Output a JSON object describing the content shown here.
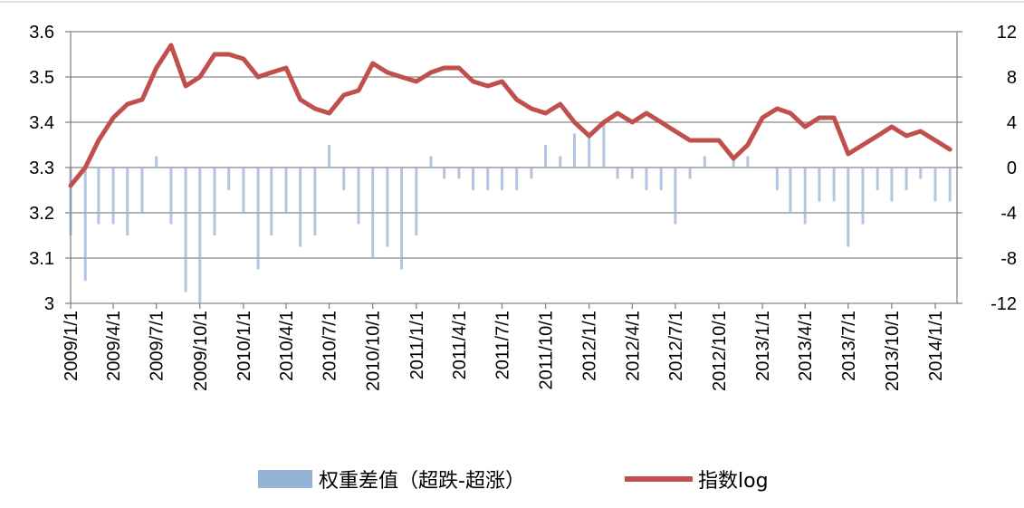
{
  "chart_data": {
    "type": "bar+line",
    "title": "",
    "xlabel": "",
    "ylabel_left": "",
    "ylabel_right": "",
    "ylim_left": [
      3.0,
      3.6
    ],
    "ylim_right": [
      -12,
      12
    ],
    "left_ticks": [
      "3",
      "3.1",
      "3.2",
      "3.3",
      "3.4",
      "3.5",
      "3.6"
    ],
    "right_ticks": [
      "-12",
      "-8",
      "-4",
      "0",
      "4",
      "8",
      "12"
    ],
    "x_tick_labels": [
      "2009/1/1",
      "2009/4/1",
      "2009/7/1",
      "2009/10/1",
      "2010/1/1",
      "2010/4/1",
      "2010/7/1",
      "2010/10/1",
      "2011/1/1",
      "2011/4/1",
      "2011/7/1",
      "2011/10/1",
      "2012/1/1",
      "2012/4/1",
      "2012/7/1",
      "2012/10/1",
      "2013/1/1",
      "2013/4/1",
      "2013/7/1",
      "2013/10/1",
      "2014/1/1"
    ],
    "grid": true,
    "legend_position": "bottom",
    "legend": [
      {
        "label": "权重差值（超跌-超涨）",
        "color": "#95b3d7",
        "kind": "bar"
      },
      {
        "label": "指数log",
        "color": "#c0504d",
        "kind": "line"
      }
    ],
    "series": [
      {
        "name": "指数log",
        "axis": "left",
        "color": "#c0504d",
        "x": [
          "2009/1/1",
          "2009/2/1",
          "2009/3/1",
          "2009/4/1",
          "2009/5/1",
          "2009/6/1",
          "2009/7/1",
          "2009/8/1",
          "2009/9/1",
          "2009/10/1",
          "2009/11/1",
          "2009/12/1",
          "2010/1/1",
          "2010/2/1",
          "2010/3/1",
          "2010/4/1",
          "2010/5/1",
          "2010/6/1",
          "2010/7/1",
          "2010/8/1",
          "2010/9/1",
          "2010/10/1",
          "2010/11/1",
          "2010/12/1",
          "2011/1/1",
          "2011/2/1",
          "2011/3/1",
          "2011/4/1",
          "2011/5/1",
          "2011/6/1",
          "2011/7/1",
          "2011/8/1",
          "2011/9/1",
          "2011/10/1",
          "2011/11/1",
          "2011/12/1",
          "2012/1/1",
          "2012/2/1",
          "2012/3/1",
          "2012/4/1",
          "2012/5/1",
          "2012/6/1",
          "2012/7/1",
          "2012/8/1",
          "2012/9/1",
          "2012/10/1",
          "2012/11/1",
          "2012/12/1",
          "2013/1/1",
          "2013/2/1",
          "2013/3/1",
          "2013/4/1",
          "2013/5/1",
          "2013/6/1",
          "2013/7/1",
          "2013/8/1",
          "2013/9/1",
          "2013/10/1",
          "2013/11/1",
          "2013/12/1",
          "2014/1/1",
          "2014/2/1"
        ],
        "values": [
          3.26,
          3.3,
          3.36,
          3.41,
          3.44,
          3.45,
          3.52,
          3.57,
          3.48,
          3.5,
          3.55,
          3.55,
          3.54,
          3.5,
          3.51,
          3.52,
          3.45,
          3.43,
          3.42,
          3.46,
          3.47,
          3.53,
          3.51,
          3.5,
          3.49,
          3.51,
          3.52,
          3.52,
          3.49,
          3.48,
          3.49,
          3.45,
          3.43,
          3.42,
          3.44,
          3.4,
          3.37,
          3.4,
          3.42,
          3.4,
          3.42,
          3.4,
          3.38,
          3.36,
          3.36,
          3.36,
          3.32,
          3.35,
          3.41,
          3.43,
          3.42,
          3.39,
          3.41,
          3.41,
          3.33,
          3.35,
          3.37,
          3.39,
          3.37,
          3.38,
          3.36,
          3.34
        ]
      },
      {
        "name": "权重差值（超跌-超涨）",
        "axis": "right",
        "color": "#95b3d7",
        "x": [
          "2009/1/1",
          "2009/2/1",
          "2009/3/1",
          "2009/4/1",
          "2009/5/1",
          "2009/6/1",
          "2009/7/1",
          "2009/8/1",
          "2009/9/1",
          "2009/10/1",
          "2009/11/1",
          "2009/12/1",
          "2010/1/1",
          "2010/2/1",
          "2010/3/1",
          "2010/4/1",
          "2010/5/1",
          "2010/6/1",
          "2010/7/1",
          "2010/8/1",
          "2010/9/1",
          "2010/10/1",
          "2010/11/1",
          "2010/12/1",
          "2011/1/1",
          "2011/2/1",
          "2011/3/1",
          "2011/4/1",
          "2011/5/1",
          "2011/6/1",
          "2011/7/1",
          "2011/8/1",
          "2011/9/1",
          "2011/10/1",
          "2011/11/1",
          "2011/12/1",
          "2012/1/1",
          "2012/2/1",
          "2012/3/1",
          "2012/4/1",
          "2012/5/1",
          "2012/6/1",
          "2012/7/1",
          "2012/8/1",
          "2012/9/1",
          "2012/10/1",
          "2012/11/1",
          "2012/12/1",
          "2013/1/1",
          "2013/2/1",
          "2013/3/1",
          "2013/4/1",
          "2013/5/1",
          "2013/6/1",
          "2013/7/1",
          "2013/8/1",
          "2013/9/1",
          "2013/10/1",
          "2013/11/1",
          "2013/12/1",
          "2014/1/1",
          "2014/2/1"
        ],
        "values": [
          -6,
          -10,
          -5,
          -5,
          -6,
          -4,
          1,
          -5,
          -11,
          -12,
          -6,
          -2,
          -4,
          -9,
          -6,
          -4,
          -7,
          -6,
          2,
          -2,
          -5,
          -8,
          -7,
          -9,
          -6,
          1,
          -1,
          -1,
          -2,
          -2,
          -2,
          -2,
          -1,
          2,
          1,
          3,
          3,
          4,
          -1,
          -1,
          -2,
          -2,
          -5,
          -1,
          1,
          0,
          1,
          1,
          0,
          -2,
          -4,
          -5,
          -3,
          -3,
          -7,
          -5,
          -2,
          -3,
          -2,
          -1,
          -3,
          -3
        ]
      }
    ]
  }
}
